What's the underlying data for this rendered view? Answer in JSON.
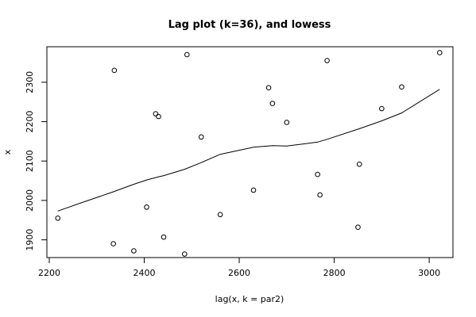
{
  "chart_data": {
    "type": "scatter",
    "title": "Lag plot (k=36), and lowess",
    "xlabel": "lag(x, k = par2)",
    "ylabel": "x",
    "xlim": [
      2195,
      3050
    ],
    "ylim": [
      1855,
      2390
    ],
    "xticks": [
      2200,
      2400,
      2600,
      2800,
      3000
    ],
    "yticks": [
      1900,
      2000,
      2100,
      2200,
      2300
    ],
    "grid": false,
    "points": [
      {
        "x": 2218,
        "y": 1955
      },
      {
        "x": 2335,
        "y": 1890
      },
      {
        "x": 2337,
        "y": 2330
      },
      {
        "x": 2378,
        "y": 1872
      },
      {
        "x": 2405,
        "y": 1983
      },
      {
        "x": 2424,
        "y": 2220
      },
      {
        "x": 2430,
        "y": 2213
      },
      {
        "x": 2441,
        "y": 1907
      },
      {
        "x": 2485,
        "y": 1864
      },
      {
        "x": 2490,
        "y": 2370
      },
      {
        "x": 2520,
        "y": 2161
      },
      {
        "x": 2560,
        "y": 1964
      },
      {
        "x": 2630,
        "y": 2026
      },
      {
        "x": 2662,
        "y": 2286
      },
      {
        "x": 2670,
        "y": 2246
      },
      {
        "x": 2700,
        "y": 2198
      },
      {
        "x": 2765,
        "y": 2066
      },
      {
        "x": 2770,
        "y": 2014
      },
      {
        "x": 2785,
        "y": 2355
      },
      {
        "x": 2850,
        "y": 1932
      },
      {
        "x": 2853,
        "y": 2092
      },
      {
        "x": 2900,
        "y": 2233
      },
      {
        "x": 2942,
        "y": 2288
      },
      {
        "x": 3022,
        "y": 2375
      }
    ],
    "lowess": [
      {
        "x": 2218,
        "y": 1973
      },
      {
        "x": 2270,
        "y": 1995
      },
      {
        "x": 2335,
        "y": 2022
      },
      {
        "x": 2378,
        "y": 2041
      },
      {
        "x": 2405,
        "y": 2052
      },
      {
        "x": 2430,
        "y": 2060
      },
      {
        "x": 2441,
        "y": 2063
      },
      {
        "x": 2485,
        "y": 2079
      },
      {
        "x": 2520,
        "y": 2096
      },
      {
        "x": 2560,
        "y": 2117
      },
      {
        "x": 2630,
        "y": 2135
      },
      {
        "x": 2670,
        "y": 2139
      },
      {
        "x": 2700,
        "y": 2138
      },
      {
        "x": 2765,
        "y": 2148
      },
      {
        "x": 2785,
        "y": 2155
      },
      {
        "x": 2853,
        "y": 2182
      },
      {
        "x": 2900,
        "y": 2202
      },
      {
        "x": 2942,
        "y": 2222
      },
      {
        "x": 3022,
        "y": 2282
      }
    ]
  }
}
